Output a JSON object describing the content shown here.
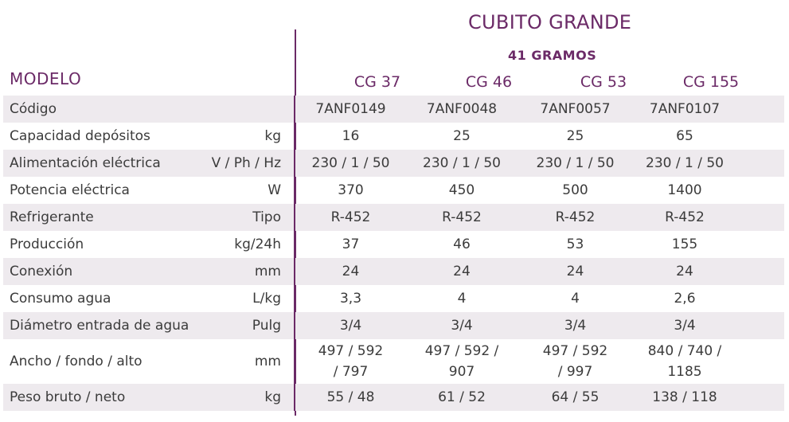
{
  "header": {
    "title": "CUBITO GRANDE",
    "subtitle": "41 GRAMOS",
    "model_label": "MODELO",
    "models": [
      "CG 37",
      "CG 46",
      "CG 53",
      "CG 155"
    ]
  },
  "rows": [
    {
      "label": "Código",
      "unit": "",
      "values": [
        "7ANF0149",
        "7ANF0048",
        "7ANF0057",
        "7ANF0107"
      ]
    },
    {
      "label": "Capacidad depósitos",
      "unit": "kg",
      "values": [
        "16",
        "25",
        "25",
        "65"
      ]
    },
    {
      "label": "Alimentación eléctrica",
      "unit": "V / Ph / Hz",
      "values": [
        "230 / 1 / 50",
        "230 / 1 / 50",
        "230 / 1 / 50",
        "230 / 1 / 50"
      ]
    },
    {
      "label": "Potencia eléctrica",
      "unit": "W",
      "values": [
        "370",
        "450",
        "500",
        "1400"
      ]
    },
    {
      "label": "Refrigerante",
      "unit": "Tipo",
      "values": [
        "R-452",
        "R-452",
        "R-452",
        "R-452"
      ]
    },
    {
      "label": "Producción",
      "unit": "kg/24h",
      "values": [
        "37",
        "46",
        "53",
        "155"
      ]
    },
    {
      "label": "Conexión",
      "unit": "mm",
      "values": [
        "24",
        "24",
        "24",
        "24"
      ]
    },
    {
      "label": "Consumo agua",
      "unit": "L/kg",
      "values": [
        "3,3",
        "4",
        "4",
        "2,6"
      ]
    },
    {
      "label": "Diámetro entrada de agua",
      "unit": "Pulg",
      "values": [
        "3/4",
        "3/4",
        "3/4",
        "3/4"
      ]
    },
    {
      "label": "Ancho / fondo / alto",
      "unit": "mm",
      "values": [
        [
          "497 / 592",
          "/ 797"
        ],
        [
          "497 / 592 /",
          "907"
        ],
        [
          "497 / 592",
          "/ 997"
        ],
        [
          "840 / 740 /",
          "1185"
        ]
      ]
    },
    {
      "label": "Peso bruto / neto",
      "unit": "kg",
      "values": [
        "55 / 48",
        "61 / 52",
        "64 / 55",
        "138 / 118"
      ]
    }
  ]
}
